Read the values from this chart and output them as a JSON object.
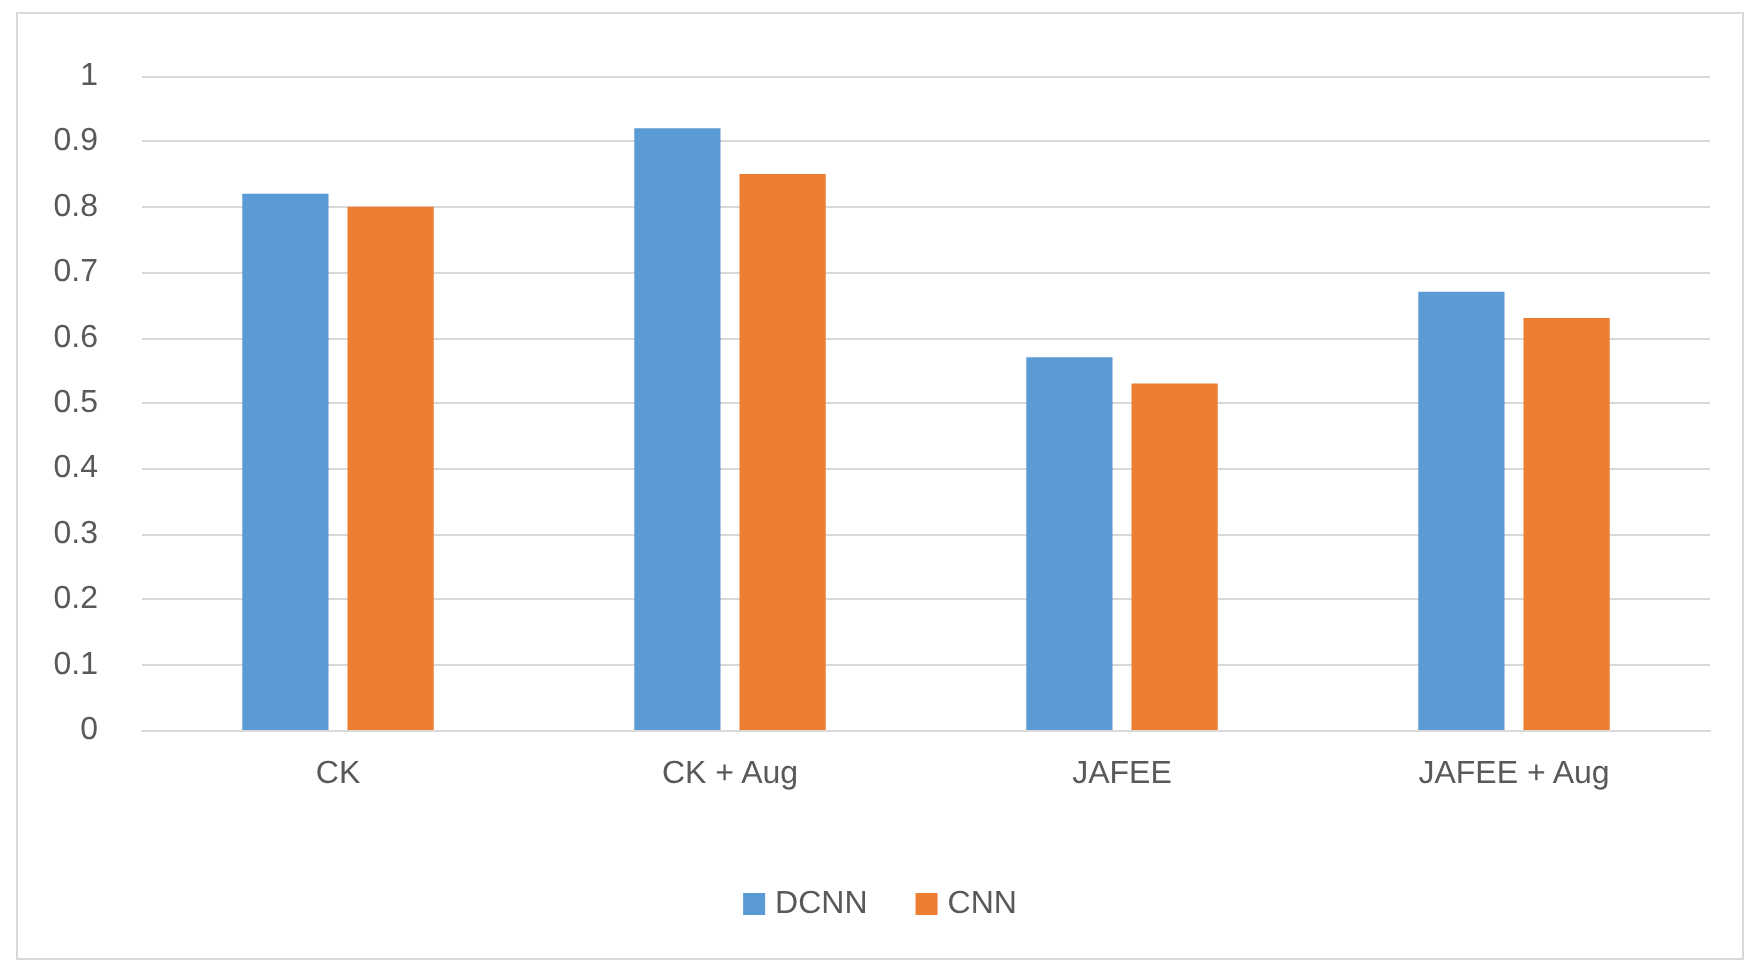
{
  "chart_data": {
    "type": "bar",
    "categories": [
      "CK",
      "CK + Aug",
      "JAFEE",
      "JAFEE + Aug"
    ],
    "series": [
      {
        "name": "DCNN",
        "color": "#5b9bd5",
        "values": [
          0.82,
          0.92,
          0.57,
          0.67
        ]
      },
      {
        "name": "CNN",
        "color": "#ed7d31",
        "values": [
          0.8,
          0.85,
          0.53,
          0.63
        ]
      }
    ],
    "ylim": [
      0,
      1
    ],
    "yticks": [
      0,
      0.1,
      0.2,
      0.3,
      0.4,
      0.5,
      0.6,
      0.7,
      0.8,
      0.9,
      1
    ],
    "grid": "y",
    "legend": "bottom"
  }
}
